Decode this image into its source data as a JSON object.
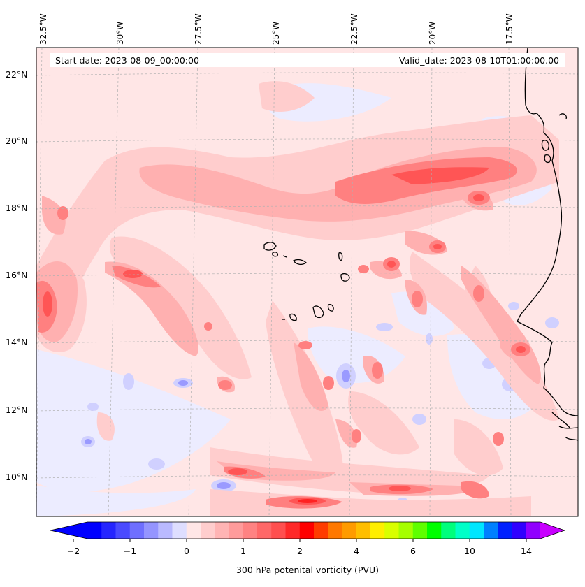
{
  "map": {
    "start_date": "Start date: 2023-08-09_00:00:00",
    "valid_date": "Valid_date: 2023-08-10T01:00:00.00",
    "longitude_labels": [
      "32.5°W",
      "30°W",
      "27.5°W",
      "25°W",
      "22.5°W",
      "20°W",
      "17.5°W"
    ],
    "latitude_labels": [
      "22°N",
      "20°N",
      "18°N",
      "16°N",
      "14°N",
      "12°N",
      "10°N"
    ],
    "extent": {
      "lon_min": -32.6,
      "lon_max": -15.6,
      "lat_min": 8.9,
      "lat_max": 22.8
    },
    "field": "300 hPa potential vorticity",
    "colors": {
      "land_outline": "#000000",
      "background_field": "#ffe6e6",
      "gridline": "#b0b0b0"
    }
  },
  "colorbar": {
    "title": "300 hPa potenital vorticity (PVU)",
    "tick_labels": [
      "−2",
      "−1",
      "0",
      "1",
      "2",
      "4",
      "6",
      "10",
      "14"
    ],
    "tick_values": [
      -2,
      -1,
      0,
      1,
      2,
      4,
      6,
      10,
      14
    ],
    "colors": [
      "#0000ff",
      "#2525ff",
      "#4a4aff",
      "#6f6fff",
      "#9494ff",
      "#b9b9ff",
      "#dedeff",
      "#ffe6e6",
      "#ffcdcd",
      "#ffb4b4",
      "#ff9b9b",
      "#ff8282",
      "#ff6868",
      "#ff4f4f",
      "#ff2828",
      "#ff0000",
      "#ff3c00",
      "#ff7800",
      "#ff9b00",
      "#ffbe00",
      "#ffee00",
      "#d9ff00",
      "#a6ff00",
      "#5fff00",
      "#00ff00",
      "#00ff7c",
      "#00ffc8",
      "#00e6ff",
      "#0080ff",
      "#0020ff",
      "#3000ff",
      "#9000ff"
    ],
    "extend_min_color": "#0000ff",
    "extend_max_color": "#c800ff"
  }
}
